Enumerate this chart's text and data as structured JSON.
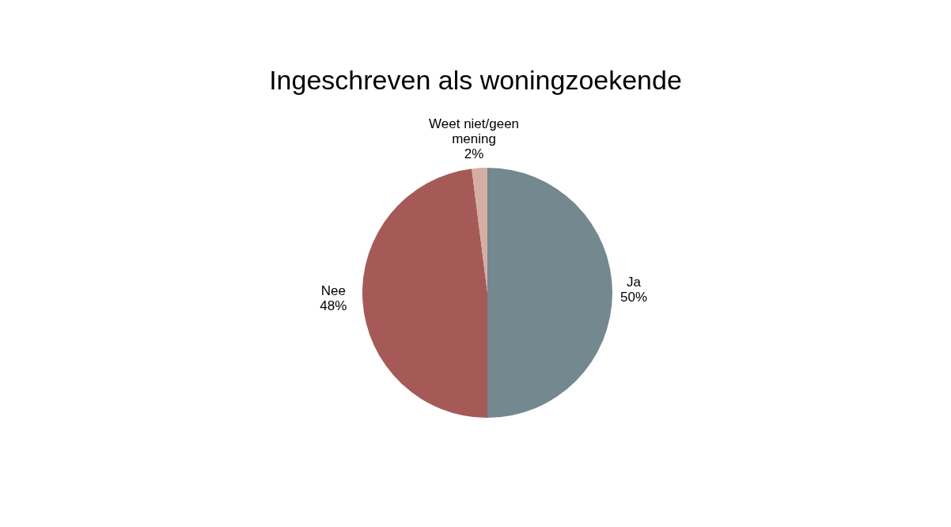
{
  "chart_data": {
    "type": "pie",
    "title": "Ingeschreven als woningzoekende",
    "categories": [
      "Ja",
      "Nee",
      "Weet niet/geen mening"
    ],
    "values": [
      50,
      48,
      2
    ],
    "colors": [
      "#748890",
      "#a55a57",
      "#d4aea2"
    ],
    "value_labels": [
      "50%",
      "48%",
      "2%"
    ],
    "legend": false
  }
}
